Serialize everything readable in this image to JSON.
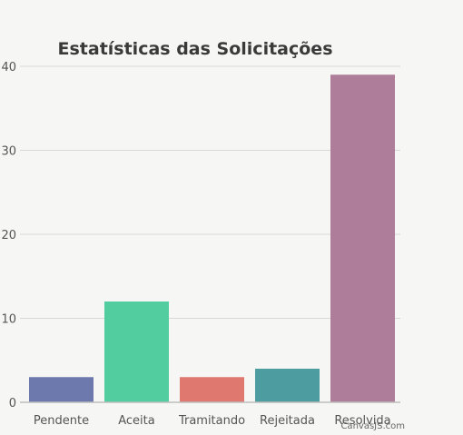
{
  "chart_data": {
    "type": "bar",
    "title": "Estatísticas das Solicitações",
    "categories": [
      "Pendente",
      "Aceita",
      "Tramitando",
      "Rejeitada",
      "Resolvida"
    ],
    "values": [
      3,
      12,
      3,
      4,
      39
    ],
    "colors": [
      "#6d78ad",
      "#51cda0",
      "#df7970",
      "#4c9ca0",
      "#ae7d99"
    ],
    "ylim": [
      0,
      40
    ],
    "yticks": [
      0,
      10,
      20,
      30,
      40
    ],
    "xlabel": "",
    "ylabel": "",
    "grid": true,
    "credit": "CanvasJS.com"
  }
}
